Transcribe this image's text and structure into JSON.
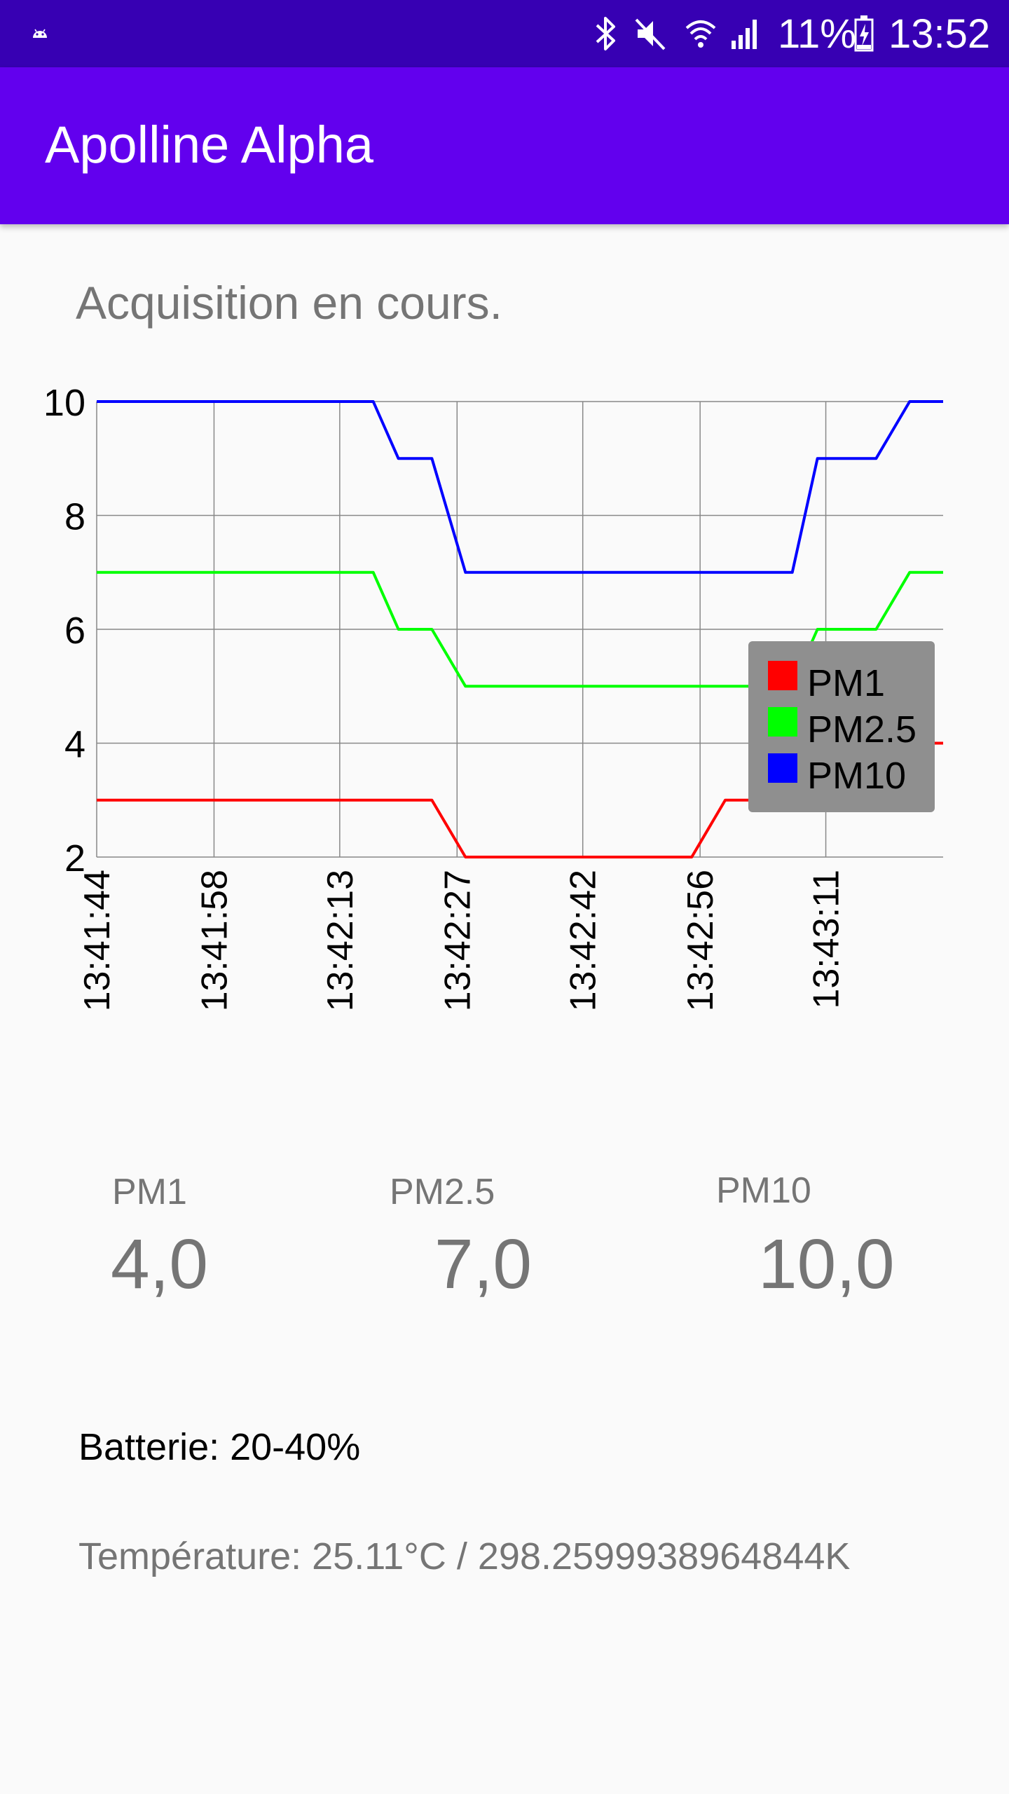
{
  "status_bar": {
    "battery_percent": "11%",
    "time": "13:52",
    "icons": [
      "android-icon",
      "bluetooth-icon",
      "mute-icon",
      "wifi-icon",
      "signal-icon",
      "battery-charging-icon"
    ]
  },
  "app_bar": {
    "title": "Apolline Alpha",
    "color": "#6200ee"
  },
  "acquisition_status": "Acquisition en cours.",
  "chart_data": {
    "type": "line",
    "x": [
      "13:41:44",
      "13:41:51",
      "13:41:58",
      "13:42:06",
      "13:42:13",
      "13:42:17",
      "13:42:20",
      "13:42:24",
      "13:42:28",
      "13:42:35",
      "13:42:42",
      "13:42:49",
      "13:42:55",
      "13:42:59",
      "13:43:03",
      "13:43:07",
      "13:43:10",
      "13:43:14",
      "13:43:17",
      "13:43:21",
      "13:43:25"
    ],
    "x_tick_labels": [
      "13:41:44",
      "13:41:58",
      "13:42:13",
      "13:42:27",
      "13:42:42",
      "13:42:56",
      "13:43:11"
    ],
    "series": [
      {
        "name": "PM1",
        "color": "#ff0000",
        "values": [
          3,
          3,
          3,
          3,
          3,
          3,
          3,
          3,
          2,
          2,
          2,
          2,
          2,
          3,
          3,
          3,
          4,
          4,
          4,
          4,
          4
        ]
      },
      {
        "name": "PM2.5",
        "color": "#00ff00",
        "values": [
          7,
          7,
          7,
          7,
          7,
          7,
          6,
          6,
          5,
          5,
          5,
          5,
          5,
          5,
          5,
          5,
          6,
          6,
          6,
          7,
          7
        ]
      },
      {
        "name": "PM10",
        "color": "#0000ff",
        "values": [
          10,
          10,
          10,
          10,
          10,
          10,
          9,
          9,
          7,
          7,
          7,
          7,
          7,
          7,
          7,
          7,
          9,
          9,
          9,
          10,
          10
        ]
      }
    ],
    "y_ticks": [
      2,
      4,
      6,
      8,
      10
    ],
    "ylim": [
      2,
      10
    ],
    "grid": true,
    "legend_position": "right",
    "legend_background": "#8f8f8f"
  },
  "readings": {
    "pm1": {
      "label": "PM1",
      "value": "4,0"
    },
    "pm25": {
      "label": "PM2.5",
      "value": "7,0"
    },
    "pm10": {
      "label": "PM10",
      "value": "10,0"
    }
  },
  "battery": "Batterie: 20-40%",
  "temperature": "Température: 25.11°C / 298.2599938964844K"
}
